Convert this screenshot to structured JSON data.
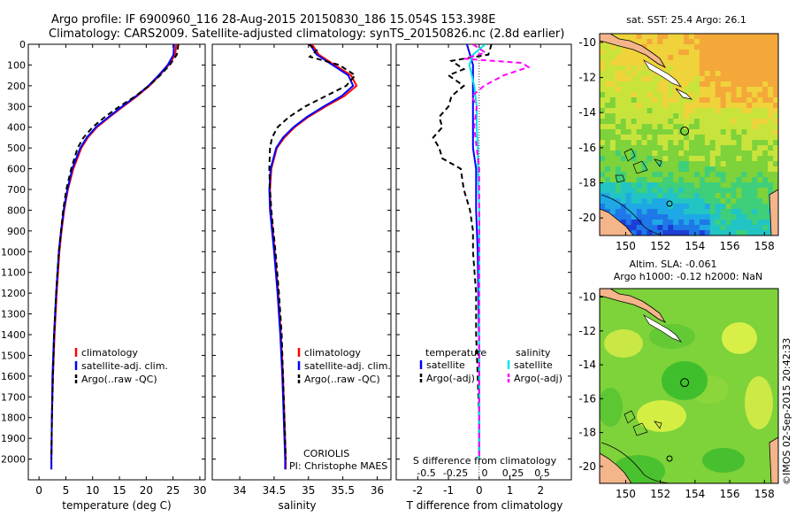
{
  "header": {
    "line1": "Argo profile: IF 6900960_116 28-Aug-2015 20150830_186 15.054S 153.398E",
    "line2": "Climatology: CARS2009. Satellite-adjusted climatology: synTS_20150826.nc (2.8d earlier)"
  },
  "colors": {
    "climatology": "#ff0000",
    "satellite": "#0000ff",
    "argo": "#000000",
    "sal_satellite": "#00e5e5",
    "sal_argo": "#ff00ff",
    "land": "#f4b58a"
  },
  "chart_data": [
    {
      "id": "temperature",
      "type": "line",
      "xlabel": "temperature (deg C)",
      "ylabel": "",
      "xlim": [
        -2,
        31
      ],
      "ylim": [
        2100,
        0
      ],
      "xticks": [
        "0",
        "5",
        "10",
        "15",
        "20",
        "25",
        "30"
      ],
      "xtick_values": [
        0,
        5,
        10,
        15,
        20,
        25,
        30
      ],
      "yticks": [
        "0",
        "100",
        "200",
        "300",
        "400",
        "500",
        "600",
        "700",
        "800",
        "900",
        "1000",
        "1100",
        "1200",
        "1300",
        "1400",
        "1500",
        "1600",
        "1700",
        "1800",
        "1900",
        "2000"
      ],
      "ytick_values": [
        0,
        100,
        200,
        300,
        400,
        500,
        600,
        700,
        800,
        900,
        1000,
        1100,
        1200,
        1300,
        1400,
        1500,
        1600,
        1700,
        1800,
        1900,
        2000
      ],
      "legend": [
        "climatology",
        "satellite-adj. clim.",
        "Argo(..raw -QC)"
      ],
      "series": [
        {
          "name": "climatology",
          "style": "solid",
          "depth": [
            0,
            50,
            100,
            150,
            200,
            250,
            300,
            350,
            400,
            450,
            500,
            600,
            700,
            800,
            900,
            1000,
            1200,
            1400,
            1600,
            1800,
            2000,
            2050
          ],
          "values": [
            25.6,
            25.4,
            24.2,
            22.5,
            20.6,
            18.3,
            15.7,
            13.2,
            10.8,
            9.1,
            7.9,
            6.4,
            5.4,
            4.7,
            4.2,
            3.8,
            3.3,
            2.9,
            2.6,
            2.4,
            2.3,
            2.3
          ]
        },
        {
          "name": "satellite-adj. clim.",
          "style": "solid",
          "depth": [
            0,
            50,
            100,
            150,
            200,
            250,
            300,
            350,
            400,
            450,
            500,
            600,
            700,
            800,
            900,
            1000,
            1200,
            1400,
            1600,
            1800,
            2000,
            2050
          ],
          "values": [
            25.2,
            25.1,
            24.0,
            22.3,
            20.4,
            18.1,
            15.5,
            13.0,
            10.6,
            8.9,
            7.7,
            6.2,
            5.3,
            4.6,
            4.1,
            3.7,
            3.2,
            2.8,
            2.5,
            2.4,
            2.3,
            2.3
          ]
        },
        {
          "name": "Argo(..raw -QC)",
          "style": "dash",
          "depth": [
            0,
            50,
            100,
            150,
            200,
            250,
            300,
            350,
            400,
            450,
            500,
            600,
            700,
            800,
            900,
            1000,
            1200,
            1400,
            1600,
            1800,
            2000
          ],
          "values": [
            26.0,
            25.7,
            24.4,
            22.6,
            20.5,
            18.0,
            15.0,
            12.3,
            10.0,
            8.3,
            7.2,
            6.0,
            5.1,
            4.5,
            4.1,
            3.7,
            3.2,
            2.8,
            2.6,
            2.4,
            2.3
          ]
        }
      ]
    },
    {
      "id": "salinity",
      "type": "line",
      "xlabel": "salinity",
      "xlim": [
        33.6,
        36.2
      ],
      "ylim": [
        2100,
        0
      ],
      "xticks": [
        "34",
        "34.5",
        "35",
        "35.5",
        "36"
      ],
      "xtick_values": [
        34,
        34.5,
        35,
        35.5,
        36
      ],
      "legend": [
        "climatology",
        "satellite-adj. clim.",
        "Argo(..raw -QC)"
      ],
      "annotation": [
        "CORIOLIS",
        "PI: Christophe MAES"
      ],
      "series": [
        {
          "name": "climatology",
          "style": "solid",
          "depth": [
            0,
            50,
            100,
            150,
            200,
            250,
            300,
            350,
            400,
            450,
            500,
            600,
            700,
            800,
            900,
            1000,
            1200,
            1400,
            1600,
            1800,
            2000,
            2050
          ],
          "values": [
            35.05,
            35.15,
            35.38,
            35.62,
            35.7,
            35.52,
            35.25,
            35.0,
            34.8,
            34.65,
            34.54,
            34.46,
            34.44,
            34.45,
            34.48,
            34.51,
            34.56,
            34.6,
            34.63,
            34.65,
            34.67,
            34.67
          ]
        },
        {
          "name": "satellite-adj. clim.",
          "style": "solid",
          "depth": [
            0,
            50,
            100,
            150,
            200,
            250,
            300,
            350,
            400,
            450,
            500,
            600,
            700,
            800,
            900,
            1000,
            1200,
            1400,
            1600,
            1800,
            2000,
            2050
          ],
          "values": [
            35.02,
            35.12,
            35.35,
            35.58,
            35.65,
            35.48,
            35.22,
            34.98,
            34.78,
            34.63,
            34.53,
            34.45,
            34.43,
            34.44,
            34.47,
            34.5,
            34.55,
            34.59,
            34.62,
            34.64,
            34.66,
            34.66
          ]
        },
        {
          "name": "Argo(..raw -QC)",
          "style": "dash",
          "depth": [
            0,
            30,
            60,
            100,
            150,
            200,
            250,
            300,
            350,
            400,
            450,
            500,
            600,
            700,
            800,
            900,
            1000,
            1200,
            1400,
            1600,
            1800,
            2000
          ],
          "values": [
            35.0,
            35.12,
            35.02,
            35.45,
            35.68,
            35.55,
            35.25,
            34.95,
            34.72,
            34.55,
            34.47,
            34.44,
            34.43,
            34.44,
            34.46,
            34.49,
            34.52,
            34.57,
            34.61,
            34.63,
            34.65,
            34.67
          ]
        }
      ]
    },
    {
      "id": "differences",
      "type": "line",
      "xlabel": "T difference from climatology",
      "xlabel2": "S difference from climatology",
      "xlim": [
        -2.7,
        3.0
      ],
      "ylim": [
        2100,
        0
      ],
      "xticks": [
        "-2",
        "-1",
        "0",
        "1",
        "2"
      ],
      "xtick_values": [
        -2,
        -1,
        0,
        1,
        2
      ],
      "xticks2": [
        "-0.5",
        "-0.25",
        "0",
        "0.25",
        "0.5"
      ],
      "legend_left": [
        "temperature",
        "satellite",
        "Argo(-adj)"
      ],
      "legend_right": [
        "salinity",
        "satellite",
        "Argo(-adj)"
      ],
      "series": [
        {
          "name": "T satellite",
          "style": "solid",
          "depth": [
            0,
            50,
            100,
            150,
            200,
            300,
            400,
            500,
            600,
            800,
            1000,
            1500,
            2000
          ],
          "values": [
            -0.4,
            -0.3,
            -0.2,
            -0.2,
            -0.2,
            -0.2,
            -0.2,
            -0.2,
            -0.1,
            -0.1,
            -0.05,
            0,
            0
          ]
        },
        {
          "name": "T Argo(-adj)",
          "style": "dash",
          "depth": [
            0,
            50,
            80,
            120,
            150,
            200,
            250,
            300,
            350,
            400,
            450,
            500,
            550,
            600,
            700,
            800,
            900,
            1000,
            1200,
            1400,
            1600,
            1800,
            2000
          ],
          "values": [
            0.4,
            0.3,
            -0.9,
            -0.5,
            -1.0,
            -0.5,
            -0.9,
            -1.0,
            -1.3,
            -1.2,
            -1.5,
            -1.3,
            -1.2,
            -0.6,
            -0.5,
            -0.3,
            -0.2,
            -0.2,
            -0.1,
            -0.1,
            -0.05,
            0,
            0
          ]
        },
        {
          "name": "S satellite",
          "style": "solid",
          "depth": [
            0,
            50,
            100,
            150,
            200,
            300,
            400,
            500,
            600,
            800,
            1000,
            1500,
            2000
          ],
          "values": [
            0.05,
            -0.05,
            -0.08,
            -0.06,
            -0.04,
            -0.02,
            -0.02,
            -0.01,
            -0.01,
            0,
            0,
            0,
            0
          ]
        },
        {
          "name": "S Argo(-adj)",
          "style": "dash",
          "depth": [
            0,
            40,
            70,
            90,
            110,
            150,
            200,
            250,
            300,
            400,
            500,
            600,
            700,
            800,
            1000,
            1500,
            2000
          ],
          "values": [
            -0.05,
            0.05,
            -0.12,
            0.35,
            0.4,
            0.2,
            0.04,
            -0.06,
            -0.02,
            -0.04,
            -0.02,
            0,
            0,
            0,
            0,
            0,
            0
          ]
        }
      ]
    },
    {
      "id": "sst_map",
      "type": "heatmap",
      "title": "sat. SST: 25.4  Argo: 26.1",
      "xticks": [
        "150",
        "152",
        "154",
        "156",
        "158"
      ],
      "xtick_values": [
        150,
        152,
        154,
        156,
        158
      ],
      "yticks": [
        "-10",
        "-12",
        "-14",
        "-16",
        "-18",
        "-20"
      ],
      "ytick_values": [
        -10,
        -12,
        -14,
        -16,
        -18,
        -20
      ],
      "xlim": [
        148.5,
        158.8
      ],
      "ylim": [
        -21,
        -9.5
      ],
      "argo_position": [
        153.4,
        -15.05
      ]
    },
    {
      "id": "sla_map",
      "type": "heatmap",
      "title_line1": "Altim. SLA: -0.061",
      "title_line2": "Argo h1000: -0.12 h2000: NaN",
      "xticks": [
        "150",
        "152",
        "154",
        "156",
        "158"
      ],
      "xtick_values": [
        150,
        152,
        154,
        156,
        158
      ],
      "yticks": [
        "-10",
        "-12",
        "-14",
        "-16",
        "-18",
        "-20"
      ],
      "ytick_values": [
        -10,
        -12,
        -14,
        -16,
        -18,
        -20
      ],
      "xlim": [
        148.5,
        158.8
      ],
      "ylim": [
        -21,
        -9.5
      ],
      "argo_position": [
        153.4,
        -15.05
      ]
    }
  ],
  "footer": {
    "stamp": "©IMOS 02-Sep-2015 20:42:33"
  }
}
